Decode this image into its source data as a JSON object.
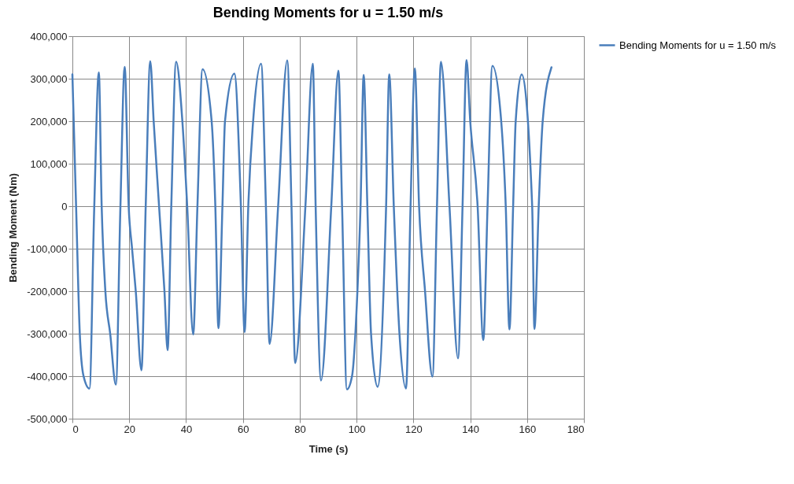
{
  "chart_data": {
    "type": "line",
    "title": "Bending Moments for u = 1.50 m/s",
    "xlabel": "Time (s)",
    "ylabel": "Bending Moment (Nm)",
    "xlim": [
      0,
      180
    ],
    "xticks": [
      0,
      20,
      40,
      60,
      80,
      100,
      120,
      140,
      160,
      180
    ],
    "ylim": [
      -500000,
      400000
    ],
    "yticks": [
      {
        "value": -500000,
        "label": "-500,000"
      },
      {
        "value": -400000,
        "label": "-400,000"
      },
      {
        "value": -300000,
        "label": "-300,000"
      },
      {
        "value": -200000,
        "label": "-200,000"
      },
      {
        "value": -100000,
        "label": "-100,000"
      },
      0,
      {
        "value": 100000,
        "label": "100,000"
      },
      {
        "value": 200000,
        "label": "200,000"
      },
      {
        "value": 300000,
        "label": "300,000"
      },
      {
        "value": 400000,
        "label": "400,000"
      }
    ],
    "grid": true,
    "legend": "right",
    "marker": "none",
    "line_style": "solid",
    "series": [
      {
        "name": "Bending Moments for u = 1.50 m/s",
        "color": "#4a7ebb",
        "x": [
          0,
          1.3,
          2.6,
          3.9,
          6.0,
          7.7,
          9.3,
          10.3,
          11.6,
          13.3,
          15.3,
          16.9,
          18.4,
          19.8,
          21.0,
          22.3,
          24.3,
          25.8,
          27.4,
          28.6,
          30.5,
          32.4,
          33.5,
          34.8,
          36.5,
          38.7,
          40.4,
          42.5,
          44.0,
          45.8,
          49.0,
          50.3,
          51.4,
          52.8,
          53.7,
          57.0,
          59.3,
          60.6,
          61.9,
          63.6,
          66.4,
          68.1,
          69.4,
          72.4,
          75.6,
          77.1,
          78.4,
          82.0,
          84.6,
          85.6,
          87.5,
          91.1,
          93.6,
          94.9,
          96.6,
          98.4,
          100.3,
          101.4,
          102.5,
          103.8,
          105.1,
          107.4,
          110.4,
          111.5,
          113.1,
          115.1,
          117.4,
          119.0,
          120.5,
          122.0,
          124.1,
          126.7,
          128.3,
          129.7,
          132.7,
          135.7,
          137.3,
          138.7,
          140.0,
          142.6,
          144.6,
          146.1,
          147.8,
          150.9,
          152.5,
          153.8,
          155.1,
          156.0,
          158.1,
          161.8,
          162.6,
          164.1,
          165.5,
          168.6
        ],
        "values": [
          310000,
          0,
          -300000,
          -399000,
          -429000,
          0,
          315000,
          0,
          -200000,
          -300000,
          -420000,
          0,
          328000,
          0,
          -100000,
          -200000,
          -386000,
          0,
          341000,
          200000,
          0,
          -200000,
          -339000,
          0,
          340000,
          200000,
          0,
          -302000,
          0,
          322000,
          200000,
          0,
          -287000,
          0,
          200000,
          312000,
          0,
          -296000,
          0,
          200000,
          335000,
          0,
          -324000,
          0,
          343000,
          0,
          -369000,
          0,
          335000,
          0,
          -410000,
          0,
          319000,
          0,
          -431000,
          -400000,
          -200000,
          0,
          309000,
          0,
          -300000,
          -425000,
          0,
          310000,
          0,
          -300000,
          -429000,
          0,
          324000,
          0,
          -200000,
          -401000,
          0,
          340000,
          0,
          -358000,
          0,
          344000,
          200000,
          0,
          -315000,
          0,
          330000,
          200000,
          0,
          -290000,
          0,
          200000,
          310000,
          0,
          -289000,
          0,
          200000,
          327000
        ]
      }
    ]
  }
}
